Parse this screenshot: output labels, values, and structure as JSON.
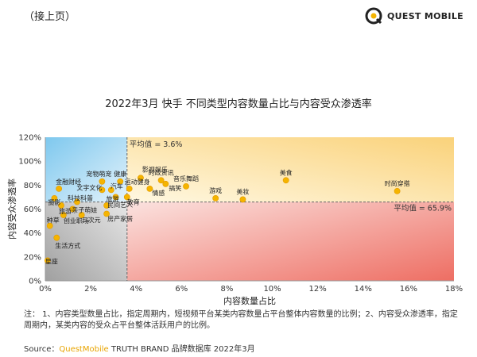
{
  "header": {
    "continued": "（接上页）",
    "logo_text": "QUEST MOBILE"
  },
  "chart_data": {
    "type": "scatter",
    "title": "2022年3月 快手 不同类型内容数量占比与内容受众渗透率",
    "xlabel": "内容数量占比",
    "ylabel": "内容受众渗透率",
    "xlim": [
      0,
      18
    ],
    "ylim": [
      0,
      120
    ],
    "x_ticks": [
      "0%",
      "2%",
      "4%",
      "6%",
      "8%",
      "10%",
      "12%",
      "14%",
      "16%",
      "18%"
    ],
    "y_ticks": [
      "0%",
      "20%",
      "40%",
      "60%",
      "80%",
      "100%",
      "120%"
    ],
    "avg_x": {
      "value": 3.6,
      "label": "平均值 = 3.6%"
    },
    "avg_y": {
      "value": 65.9,
      "label": "平均值 = 65.9%"
    },
    "points": [
      {
        "label": "美食",
        "x": 10.6,
        "y": 84
      },
      {
        "label": "时尚穿搭",
        "x": 15.5,
        "y": 75
      },
      {
        "label": "美妆",
        "x": 8.7,
        "y": 68
      },
      {
        "label": "游戏",
        "x": 7.5,
        "y": 69
      },
      {
        "label": "音乐舞蹈",
        "x": 6.2,
        "y": 79
      },
      {
        "label": "时政资讯",
        "x": 5.1,
        "y": 84
      },
      {
        "label": "搞笑",
        "x": 5.3,
        "y": 81
      },
      {
        "label": "情感",
        "x": 4.6,
        "y": 77
      },
      {
        "label": "影视娱乐",
        "x": 4.2,
        "y": 86
      },
      {
        "label": "运动健身",
        "x": 3.7,
        "y": 77
      },
      {
        "label": "健康",
        "x": 3.3,
        "y": 83
      },
      {
        "label": "汽车",
        "x": 2.9,
        "y": 76
      },
      {
        "label": "宠物萌宠",
        "x": 2.5,
        "y": 83
      },
      {
        "label": "文字文化",
        "x": 2.5,
        "y": 76
      },
      {
        "label": "教育",
        "x": 3.6,
        "y": 70
      },
      {
        "label": "旅游",
        "x": 3.1,
        "y": 70
      },
      {
        "label": "民间艺人",
        "x": 2.7,
        "y": 63
      },
      {
        "label": "房产家居",
        "x": 2.7,
        "y": 56
      },
      {
        "label": "科技科普",
        "x": 1.4,
        "y": 66
      },
      {
        "label": "亲子萌娃",
        "x": 1.2,
        "y": 60
      },
      {
        "label": "二次元",
        "x": 1.6,
        "y": 55
      },
      {
        "label": "金融财经",
        "x": 0.6,
        "y": 77
      },
      {
        "label": "摄影",
        "x": 0.4,
        "y": 69
      },
      {
        "label": "旅游",
        "x": 0.7,
        "y": 63
      },
      {
        "label": "创业职场",
        "x": 0.8,
        "y": 55
      },
      {
        "label": "种草",
        "x": 0.2,
        "y": 46
      },
      {
        "label": "生活方式",
        "x": 0.5,
        "y": 36
      },
      {
        "label": "星座",
        "x": 0.1,
        "y": 17
      }
    ]
  },
  "note": "注：  1、内容类型数量占比，指定周期内，短视频平台某类内容数量占平台整体内容数量的比例；2、内容受众渗透率，指定周期内，某类内容的受众占平台整体活跃用户的比例。",
  "source": {
    "prefix": "Source：",
    "brand": "QuestMobile",
    "rest": " TRUTH BRAND 品牌数据库 2022年3月"
  }
}
